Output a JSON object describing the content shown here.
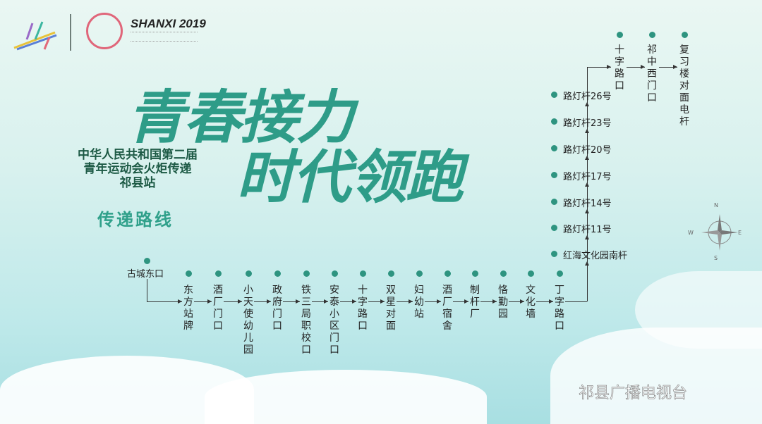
{
  "logo": {
    "brand": "SHANXI 2019"
  },
  "title": {
    "line1": "青春接力",
    "line2": "时代领跑"
  },
  "subtitle": [
    "中华人民共和国第二届",
    "青年运动会火炬传递",
    "祁县站"
  ],
  "route_title": "传递路线",
  "route": {
    "start": "古城东口",
    "bottom": [
      "东方站牌",
      "酒厂门口",
      "小天使幼儿园",
      "政府门口",
      "铁三局职校口",
      "安泰小区门口",
      "十字路口",
      "双星对面",
      "妇幼站",
      "酒厂宿舍",
      "制杆厂",
      "恪勤园",
      "文化墙",
      "丁字路口"
    ],
    "vertical": [
      "红海文化园南杆",
      "路灯杆11号",
      "路灯杆14号",
      "路灯杆17号",
      "路灯杆20号",
      "路灯杆23号",
      "路灯杆26号"
    ],
    "top": [
      "十字路口",
      "祁中西门口",
      "复习楼对面电杆"
    ]
  },
  "compass": {
    "n": "N",
    "e": "E",
    "s": "S",
    "w": "W"
  },
  "watermark": "祁县广播电视台",
  "colors": {
    "accent": "#2e9c88",
    "dot": "#2e9480"
  }
}
